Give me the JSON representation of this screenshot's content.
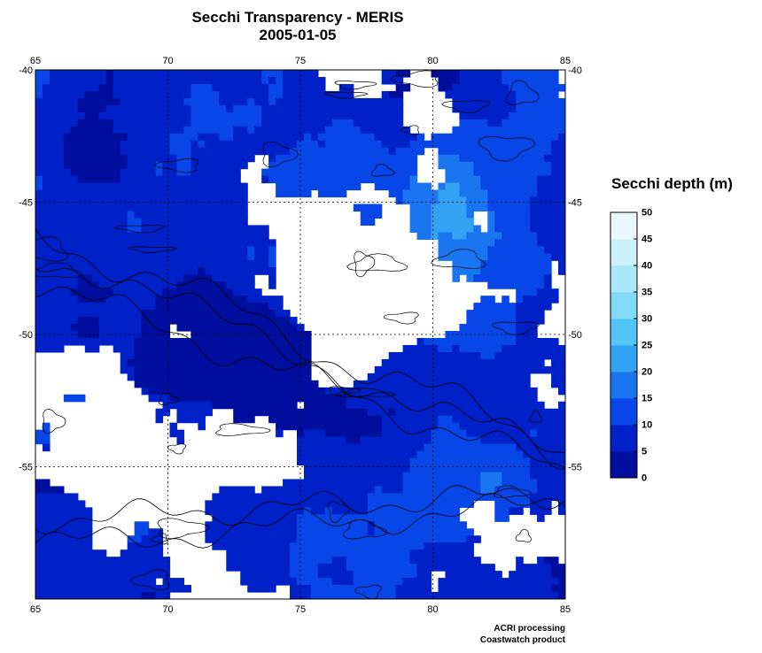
{
  "title": {
    "line1": "Secchi Transparency - MERIS",
    "line2": "2005-01-05"
  },
  "chart_data": {
    "type": "heatmap",
    "x_ticks": [
      "65",
      "70",
      "75",
      "80",
      "85"
    ],
    "y_ticks": [
      "-40",
      "-45",
      "-50",
      "-55"
    ],
    "xlim": [
      65,
      85
    ],
    "ylim": [
      -60,
      -40
    ],
    "grid": true,
    "colorbar": {
      "label": "Secchi depth (m)",
      "ticks": [
        "0",
        "5",
        "10",
        "15",
        "20",
        "25",
        "30",
        "35",
        "40",
        "45",
        "50"
      ],
      "range": [
        0,
        50
      ],
      "colors": [
        "#000e9e",
        "#0020c8",
        "#0846e8",
        "#1a76f0",
        "#33a2f2",
        "#55c4f6",
        "#80daf8",
        "#a8e8fa",
        "#ccf2fc",
        "#eaf9fe"
      ]
    },
    "no_data_color": "#ffffff"
  },
  "credit": {
    "line1": "ACRI processing",
    "line2": "Coastwatch product"
  }
}
